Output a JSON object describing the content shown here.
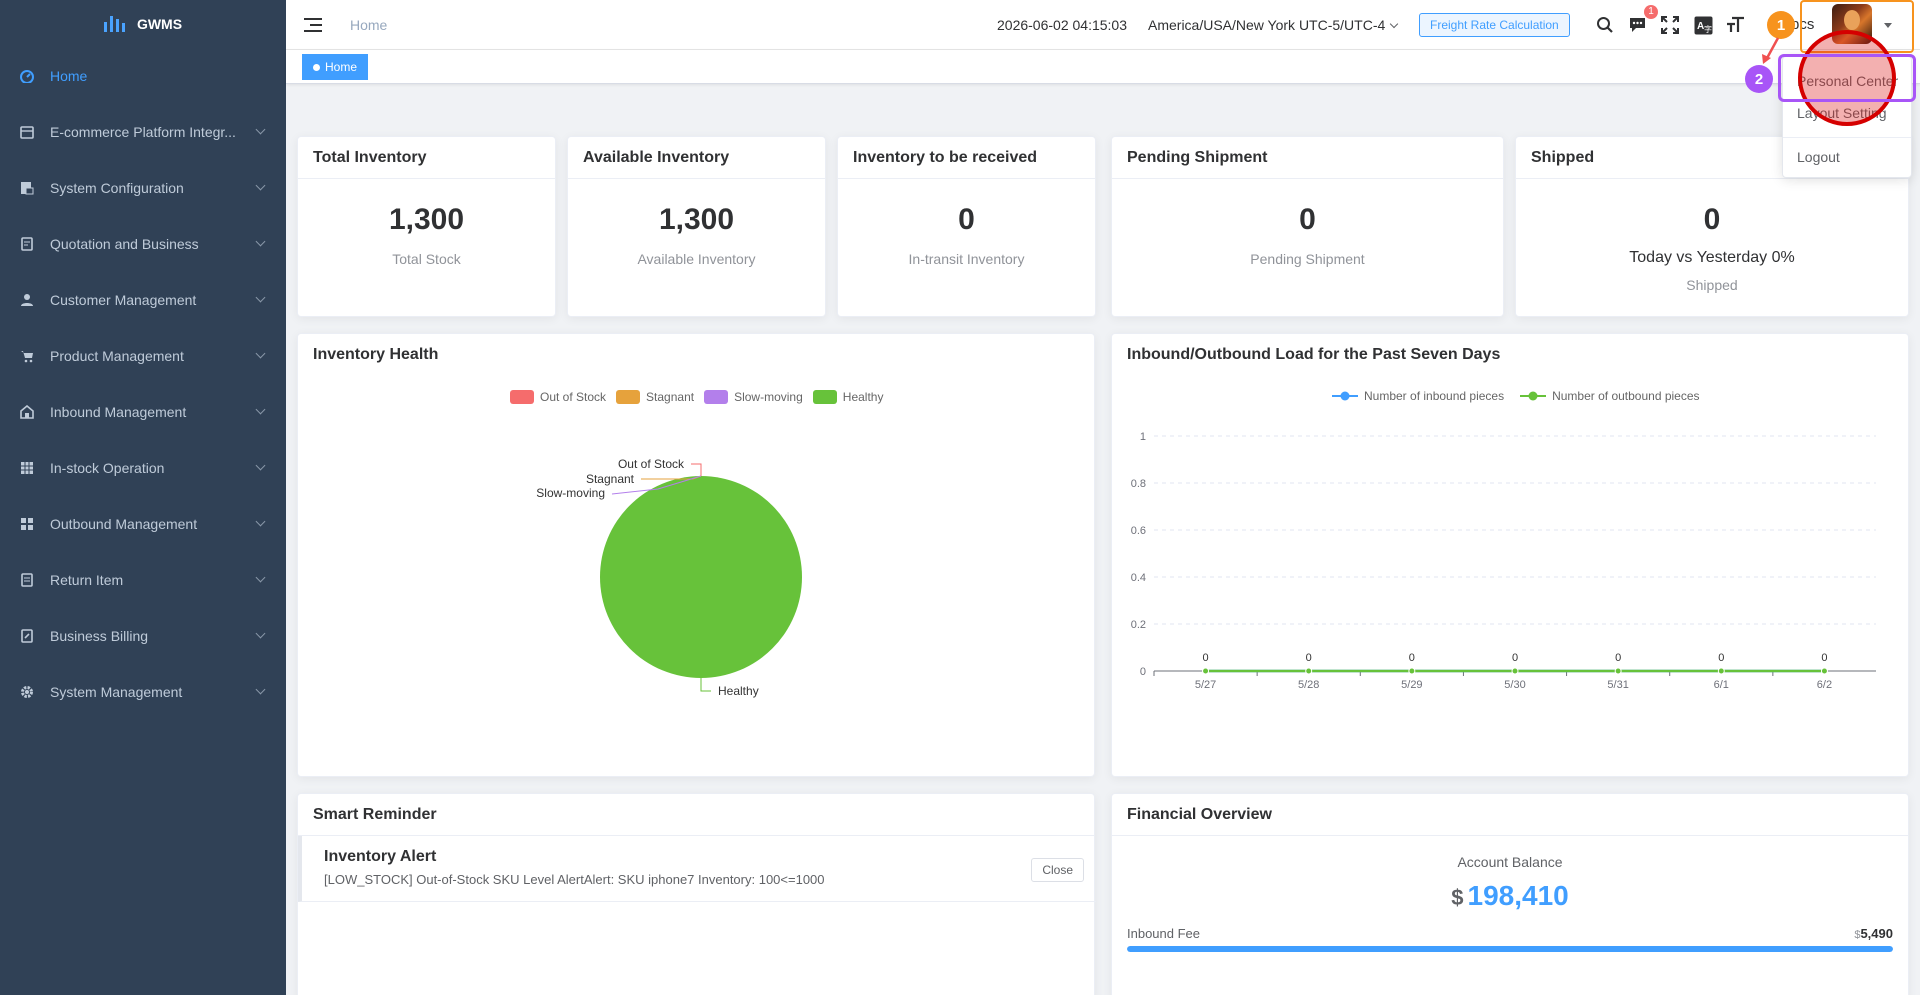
{
  "sidebar": {
    "logo": "GWMS",
    "items": [
      {
        "label": "Home",
        "icon": "dashboard-icon",
        "active": true
      },
      {
        "label": "E-commerce Platform Integr...",
        "icon": "store-icon"
      },
      {
        "label": "System Configuration",
        "icon": "config-icon"
      },
      {
        "label": "Quotation and Business",
        "icon": "quotation-icon"
      },
      {
        "label": "Customer Management",
        "icon": "user-icon"
      },
      {
        "label": "Product Management",
        "icon": "cart-icon"
      },
      {
        "label": "Inbound Management",
        "icon": "inbound-icon"
      },
      {
        "label": "In-stock Operation",
        "icon": "grid-icon"
      },
      {
        "label": "Outbound Management",
        "icon": "apps-icon"
      },
      {
        "label": "Return Item",
        "icon": "return-icon"
      },
      {
        "label": "Business Billing",
        "icon": "billing-icon"
      },
      {
        "label": "System Management",
        "icon": "gear-icon"
      }
    ]
  },
  "header": {
    "breadcrumb": "Home",
    "datetime": "2026-06-02 04:15:03",
    "timezone": "America/USA/New York UTC-5/UTC-4",
    "freight_button": "Freight Rate Calculation",
    "message_badge": "1",
    "username": "pcs"
  },
  "tags": {
    "home": "Home"
  },
  "user_menu": {
    "items": [
      "Personal Center",
      "Layout Setting",
      "Logout"
    ]
  },
  "stats": [
    {
      "title": "Total Inventory",
      "value": "1,300",
      "label": "Total Stock"
    },
    {
      "title": "Available Inventory",
      "value": "1,300",
      "label": "Available Inventory"
    },
    {
      "title": "Inventory to be received",
      "value": "0",
      "label": "In-transit Inventory"
    },
    {
      "title": "Pending Shipment",
      "value": "0",
      "label": "Pending Shipment"
    },
    {
      "title": "Shipped",
      "value": "0",
      "sub": "Today vs Yesterday 0%",
      "label": "Shipped"
    }
  ],
  "inventory_health": {
    "title": "Inventory Health",
    "legend": [
      {
        "name": "Out of Stock",
        "color": "#f56c6c"
      },
      {
        "name": "Stagnant",
        "color": "#e6a23c"
      },
      {
        "name": "Slow-moving",
        "color": "#b37feb"
      },
      {
        "name": "Healthy",
        "color": "#67c23a"
      }
    ]
  },
  "load_chart": {
    "title": "Inbound/Outbound Load for the Past Seven Days",
    "legend": [
      {
        "name": "Number of inbound pieces",
        "color": "#409eff"
      },
      {
        "name": "Number of outbound pieces",
        "color": "#67c23a"
      }
    ]
  },
  "chart_data": [
    {
      "type": "pie",
      "title": "Inventory Health",
      "labels": [
        "Out of Stock",
        "Stagnant",
        "Slow-moving",
        "Healthy"
      ],
      "values": [
        0,
        0,
        0,
        100
      ],
      "colors": [
        "#f56c6c",
        "#e6a23c",
        "#b37feb",
        "#67c23a"
      ]
    },
    {
      "type": "line",
      "title": "Inbound/Outbound Load for the Past Seven Days",
      "x": [
        "5/27",
        "5/28",
        "5/29",
        "5/30",
        "5/31",
        "6/1",
        "6/2"
      ],
      "series": [
        {
          "name": "Number of inbound pieces",
          "values": [
            0,
            0,
            0,
            0,
            0,
            0,
            0
          ],
          "color": "#409eff"
        },
        {
          "name": "Number of outbound pieces",
          "values": [
            0,
            0,
            0,
            0,
            0,
            0,
            0
          ],
          "color": "#67c23a"
        }
      ],
      "y_ticks": [
        "0",
        "0.2",
        "0.4",
        "0.6",
        "0.8",
        "1"
      ],
      "ylim": [
        0,
        1
      ],
      "grid": true,
      "legend_position": "top-center"
    }
  ],
  "smart_reminder": {
    "title": "Smart Reminder",
    "alert_title": "Inventory Alert",
    "alert_text": "[LOW_STOCK] Out-of-Stock SKU Level AlertAlert: SKU iphone7 Inventory: 100<=1000",
    "close_label": "Close"
  },
  "financial": {
    "title": "Financial Overview",
    "balance_label": "Account Balance",
    "currency": "$",
    "balance": "198,410",
    "fee_label": "Inbound Fee",
    "fee_currency": "$",
    "fee_amount": "5,490",
    "fee_progress": 1.0
  },
  "annotations": {
    "step1": "1",
    "step2": "2"
  }
}
